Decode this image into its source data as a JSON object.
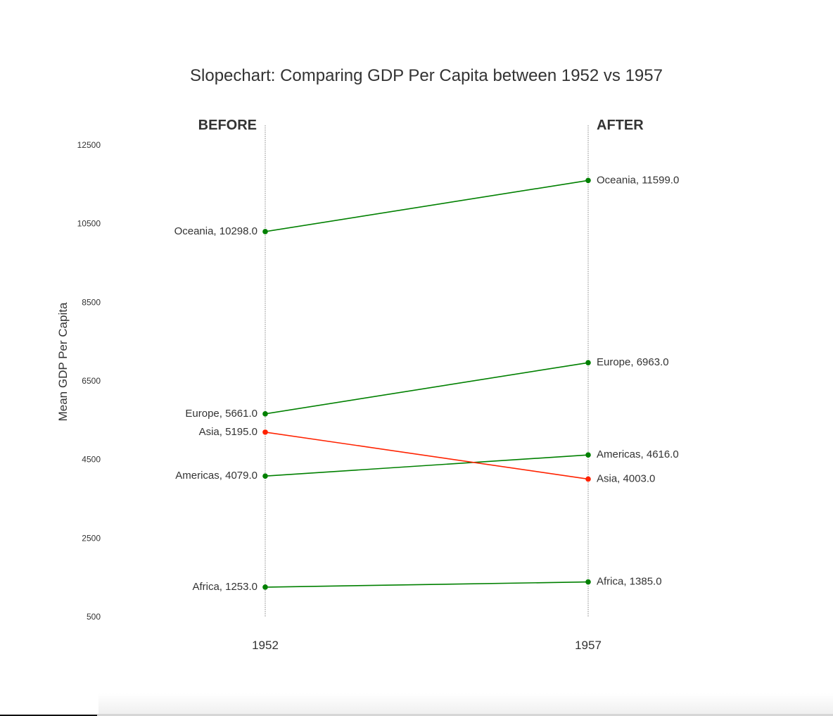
{
  "chart_data": {
    "type": "line",
    "subtype": "slopechart",
    "title": "Slopechart: Comparing GDP Per Capita between 1952 vs 1957",
    "ylabel": "Mean GDP Per Capita",
    "xlabel": "",
    "x": [
      "1952",
      "1957"
    ],
    "column_headers": [
      "BEFORE",
      "AFTER"
    ],
    "ylim": [
      500,
      12500
    ],
    "yticks": [
      500,
      2500,
      4500,
      6500,
      8500,
      10500,
      12500
    ],
    "grid": false,
    "colors": {
      "increase": "#008000",
      "decrease": "#ff2200",
      "guide": "#888888"
    },
    "series": [
      {
        "name": "Africa",
        "values": [
          1253.0,
          1385.0
        ],
        "labels": [
          "Africa, 1253.0",
          "Africa, 1385.0"
        ]
      },
      {
        "name": "Americas",
        "values": [
          4079.0,
          4616.0
        ],
        "labels": [
          "Americas, 4079.0",
          "Americas, 4616.0"
        ]
      },
      {
        "name": "Asia",
        "values": [
          5195.0,
          4003.0
        ],
        "labels": [
          "Asia, 5195.0",
          "Asia, 4003.0"
        ]
      },
      {
        "name": "Europe",
        "values": [
          5661.0,
          6963.0
        ],
        "labels": [
          "Europe, 5661.0",
          "Europe, 6963.0"
        ]
      },
      {
        "name": "Oceania",
        "values": [
          10298.0,
          11599.0
        ],
        "labels": [
          "Oceania, 10298.0",
          "Oceania, 11599.0"
        ]
      }
    ]
  }
}
